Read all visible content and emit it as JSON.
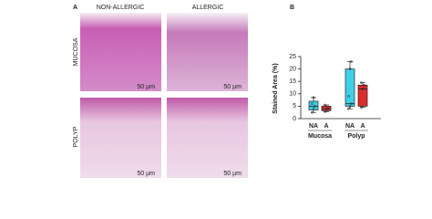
{
  "panel_a": {
    "label": "A",
    "columns": [
      "NON-ALLERGIC",
      "ALLERGIC"
    ],
    "rows": [
      "MUCOSA",
      "POLYP"
    ],
    "scale_bars": [
      "50 µm",
      "50 µm",
      "50 µm",
      "50 µm"
    ]
  },
  "chart_data": {
    "type": "box",
    "label": "B",
    "y_label": "Stained Area (%)",
    "categories": [
      "NA",
      "A",
      "NA",
      "A"
    ],
    "groups": [
      {
        "name": "Mucosa",
        "span": [
          0,
          1
        ]
      },
      {
        "name": "Polyp",
        "span": [
          2,
          3
        ]
      }
    ],
    "colors": [
      "#3fd0e8",
      "#e02b2b",
      "#3fd0e8",
      "#e02b2b"
    ],
    "boxes": [
      {
        "min": 2.5,
        "q1": 3.5,
        "median": 5,
        "q3": 7,
        "max": 8.5,
        "points": [
          2.5,
          4,
          5,
          6,
          8.5
        ]
      },
      {
        "min": 2.8,
        "q1": 3.2,
        "median": 4,
        "q3": 5,
        "max": 5.5,
        "points": [
          2.8,
          3.5,
          4,
          5.5
        ]
      },
      {
        "min": 4,
        "q1": 5,
        "median": 6,
        "q3": 20,
        "max": 23,
        "points": [
          4,
          5,
          6,
          9,
          20,
          23
        ]
      },
      {
        "min": 4.5,
        "q1": 5,
        "median": 12,
        "q3": 13.5,
        "max": 14.5,
        "points": [
          4.5,
          12,
          13.5,
          14.5
        ]
      }
    ],
    "ylim": [
      0,
      25
    ],
    "yticks": [
      0,
      5,
      10,
      15,
      20,
      25
    ]
  }
}
